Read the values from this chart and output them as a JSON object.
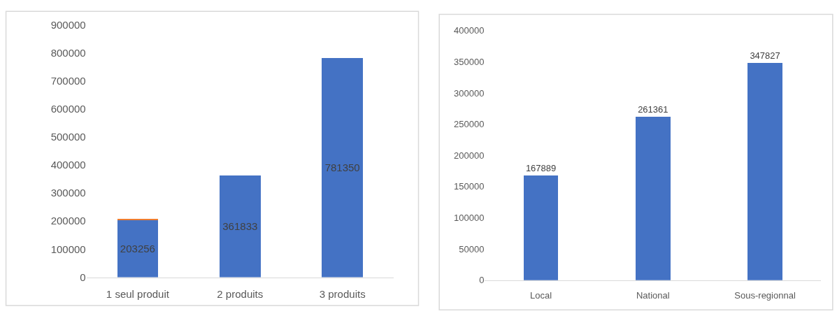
{
  "chart_data": [
    {
      "type": "bar",
      "categories": [
        "1 seul produit",
        "2 produits",
        "3 produits"
      ],
      "stacked": true,
      "ylim": [
        0,
        900000
      ],
      "yticks": [
        0,
        100000,
        200000,
        300000,
        400000,
        500000,
        600000,
        700000,
        800000,
        900000
      ],
      "grid": false,
      "series": [
        {
          "color": "#4472c4",
          "values": [
            203256,
            361833,
            781350
          ],
          "value_labels": [
            "203256",
            "361833",
            "781350"
          ]
        },
        {
          "color": "#ed7d31",
          "values": [
            3000,
            null,
            null
          ]
        }
      ]
    },
    {
      "type": "bar",
      "categories": [
        "Local",
        "National",
        "Sous-regionnal"
      ],
      "ylim": [
        0,
        400000
      ],
      "yticks": [
        0,
        50000,
        100000,
        150000,
        200000,
        250000,
        300000,
        350000,
        400000
      ],
      "grid": false,
      "data_labels": true,
      "series": [
        {
          "color": "#4472c4",
          "values": [
            167889,
            261361,
            347827
          ]
        }
      ]
    }
  ]
}
